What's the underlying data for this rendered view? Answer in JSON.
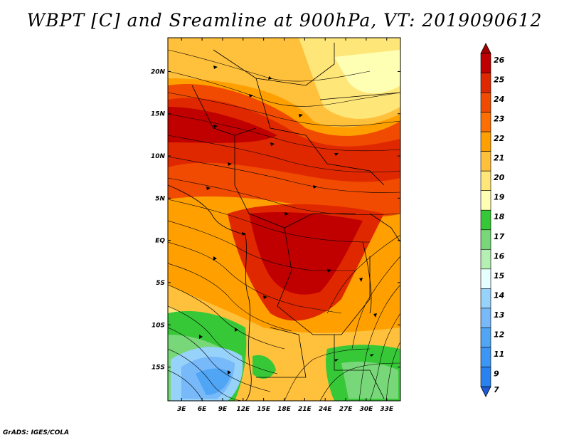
{
  "title": "WBPT [C] and Sreamline at 900hPa, VT: 2019090612",
  "credit": "GrADS: IGES/COLA",
  "map": {
    "lat_range": [
      -19,
      24
    ],
    "lon_range": [
      1,
      35
    ],
    "lat_ticks": [
      {
        "value": 20,
        "label": "20N"
      },
      {
        "value": 15,
        "label": "15N"
      },
      {
        "value": 10,
        "label": "10N"
      },
      {
        "value": 5,
        "label": "5N"
      },
      {
        "value": 0,
        "label": "EQ"
      },
      {
        "value": -5,
        "label": "5S"
      },
      {
        "value": -10,
        "label": "10S"
      },
      {
        "value": -15,
        "label": "15S"
      }
    ],
    "lon_ticks": [
      {
        "value": 3,
        "label": "3E"
      },
      {
        "value": 6,
        "label": "6E"
      },
      {
        "value": 9,
        "label": "9E"
      },
      {
        "value": 12,
        "label": "12E"
      },
      {
        "value": 15,
        "label": "15E"
      },
      {
        "value": 18,
        "label": "18E"
      },
      {
        "value": 21,
        "label": "21E"
      },
      {
        "value": 24,
        "label": "24E"
      },
      {
        "value": 27,
        "label": "27E"
      },
      {
        "value": 30,
        "label": "30E"
      },
      {
        "value": 33,
        "label": "33E"
      }
    ]
  },
  "colorbar": {
    "levels": [
      {
        "label": "7",
        "color": "#1e6eeb"
      },
      {
        "label": "9",
        "color": "#2882f0"
      },
      {
        "label": "11",
        "color": "#3c96f5"
      },
      {
        "label": "12",
        "color": "#50a5f5"
      },
      {
        "label": "13",
        "color": "#78b9fa"
      },
      {
        "label": "14",
        "color": "#96d2fa"
      },
      {
        "label": "15",
        "color": "#e6ffff"
      },
      {
        "label": "16",
        "color": "#b4f0b4"
      },
      {
        "label": "17",
        "color": "#78d778"
      },
      {
        "label": "18",
        "color": "#37c837"
      },
      {
        "label": "19",
        "color": "#ffffb4"
      },
      {
        "label": "20",
        "color": "#ffe678"
      },
      {
        "label": "21",
        "color": "#ffc03c"
      },
      {
        "label": "22",
        "color": "#ffa000"
      },
      {
        "label": "23",
        "color": "#ff6e00"
      },
      {
        "label": "24",
        "color": "#f04b00"
      },
      {
        "label": "25",
        "color": "#e02800"
      },
      {
        "label": "26",
        "color": "#c00000"
      }
    ],
    "over_color": "#a00000",
    "under_color": "#1e5ad2"
  }
}
